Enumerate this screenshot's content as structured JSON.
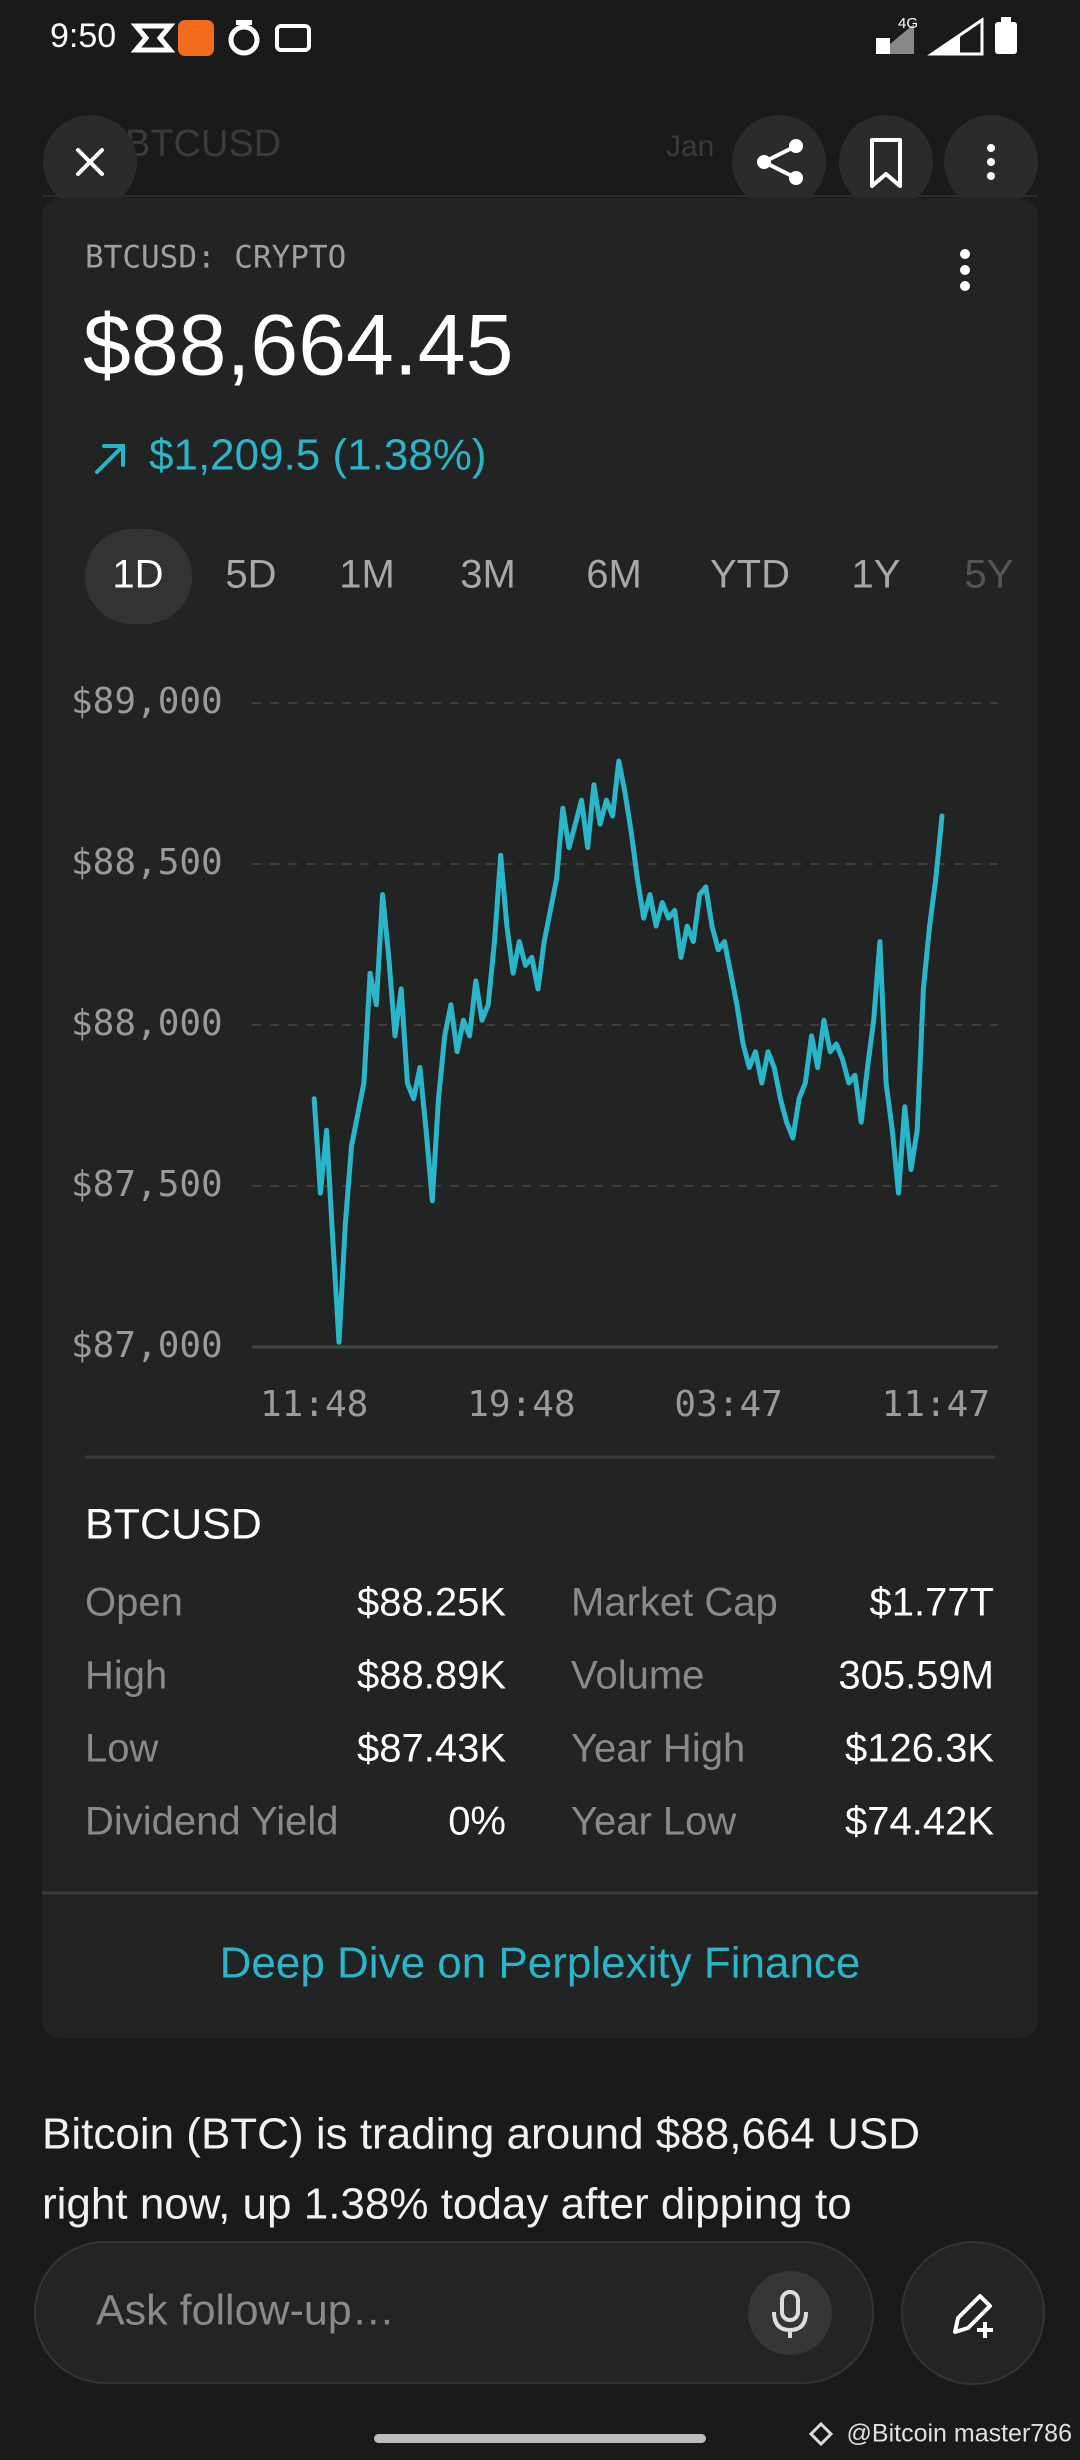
{
  "status_bar": {
    "time": "9:50",
    "network": "4G"
  },
  "header": {
    "title": "BTCUSD",
    "date": "Jan"
  },
  "quote": {
    "symbol": "BTCUSD: CRYPTO",
    "price": "$88,664.45",
    "change": "$1,209.5 (1.38%)"
  },
  "ranges": [
    "1D",
    "5D",
    "1M",
    "3M",
    "6M",
    "YTD",
    "1Y",
    "5Y"
  ],
  "chart_data": {
    "type": "line",
    "color": "#2bb5c9",
    "grid": true,
    "x": [
      0,
      0.24,
      0.48,
      0.72,
      0.96,
      1.2,
      1.44,
      1.68,
      1.92,
      2.16,
      2.4,
      2.64,
      2.88,
      3.12,
      3.36,
      3.6,
      3.84,
      4.08,
      4.32,
      4.56,
      4.8,
      5.04,
      5.28,
      5.52,
      5.76,
      6,
      6.24,
      6.48,
      6.72,
      6.96,
      7.2,
      7.44,
      7.68,
      7.92,
      8.16,
      8.4,
      8.64,
      8.88,
      9.12,
      9.36,
      9.6,
      9.84,
      10.08,
      10.32,
      10.56,
      10.8,
      11.04,
      11.28,
      11.52,
      11.76,
      12,
      12.24,
      12.48,
      12.72,
      12.96,
      13.2,
      13.44,
      13.68,
      13.92,
      14.16,
      14.4,
      14.64,
      14.88,
      15.12,
      15.36,
      15.6,
      15.84,
      16.08,
      16.32,
      16.56,
      16.8,
      17.04,
      17.28,
      17.52,
      17.76,
      18,
      18.24,
      18.48,
      18.72,
      18.96,
      19.2,
      19.44,
      19.68,
      19.92,
      20.16,
      20.4,
      20.64,
      20.88,
      21.12,
      21.36,
      21.6,
      21.84,
      22.08,
      22.32,
      22.56,
      22.8,
      23.04,
      23.28,
      23.52,
      23.76,
      24,
      24.24
    ],
    "values": [
      87771,
      87478,
      87673,
      87332,
      87015,
      87380,
      87624,
      87722,
      87820,
      88161,
      88063,
      88405,
      88210,
      87966,
      88112,
      87820,
      87771,
      87868,
      87673,
      87454,
      87771,
      87966,
      88063,
      87917,
      88015,
      87966,
      88137,
      88015,
      88063,
      88259,
      88527,
      88307,
      88161,
      88259,
      88185,
      88210,
      88112,
      88259,
      88356,
      88454,
      88673,
      88551,
      88624,
      88698,
      88551,
      88746,
      88624,
      88698,
      88649,
      88820,
      88722,
      88600,
      88454,
      88332,
      88405,
      88307,
      88380,
      88332,
      88356,
      88210,
      88307,
      88259,
      88405,
      88429,
      88307,
      88234,
      88259,
      88161,
      88063,
      87941,
      87868,
      87917,
      87820,
      87917,
      87868,
      87771,
      87698,
      87649,
      87771,
      87820,
      87966,
      87868,
      88015,
      87917,
      87941,
      87893,
      87820,
      87844,
      87698,
      87868,
      88015,
      88259,
      87820,
      87673,
      87478,
      87746,
      87551,
      87673,
      88112,
      88307,
      88454,
      88649
    ],
    "xlim": [
      -2.4,
      26.4
    ],
    "xticks": [
      {
        "value": 0,
        "label": "11:48"
      },
      {
        "value": 8,
        "label": "19:48"
      },
      {
        "value": 16,
        "label": "03:47"
      },
      {
        "value": 24,
        "label": "11:47"
      }
    ],
    "ylim": [
      87000,
      89000
    ],
    "yticks": [
      {
        "value": 87000,
        "label": "$87,000"
      },
      {
        "value": 87500,
        "label": "$87,500"
      },
      {
        "value": 88000,
        "label": "$88,000"
      },
      {
        "value": 88500,
        "label": "$88,500"
      },
      {
        "value": 89000,
        "label": "$89,000"
      }
    ]
  },
  "stats": {
    "title": "BTCUSD",
    "rows": [
      [
        "Open",
        "$88.25K",
        "Market Cap",
        "$1.77T"
      ],
      [
        "High",
        "$88.89K",
        "Volume",
        "305.59M"
      ],
      [
        "Low",
        "$87.43K",
        "Year High",
        "$126.3K"
      ],
      [
        "Dividend Yield",
        "0%",
        "Year Low",
        "$74.42K"
      ]
    ]
  },
  "link": "Deep Dive on Perplexity Finance",
  "answer": [
    "Bitcoin (BTC) is trading around $88,664 USD",
    "right now, up 1.38% today after dipping to"
  ],
  "input": {
    "placeholder": "Ask follow-up…"
  },
  "watermark": "@Bitcoin master786"
}
